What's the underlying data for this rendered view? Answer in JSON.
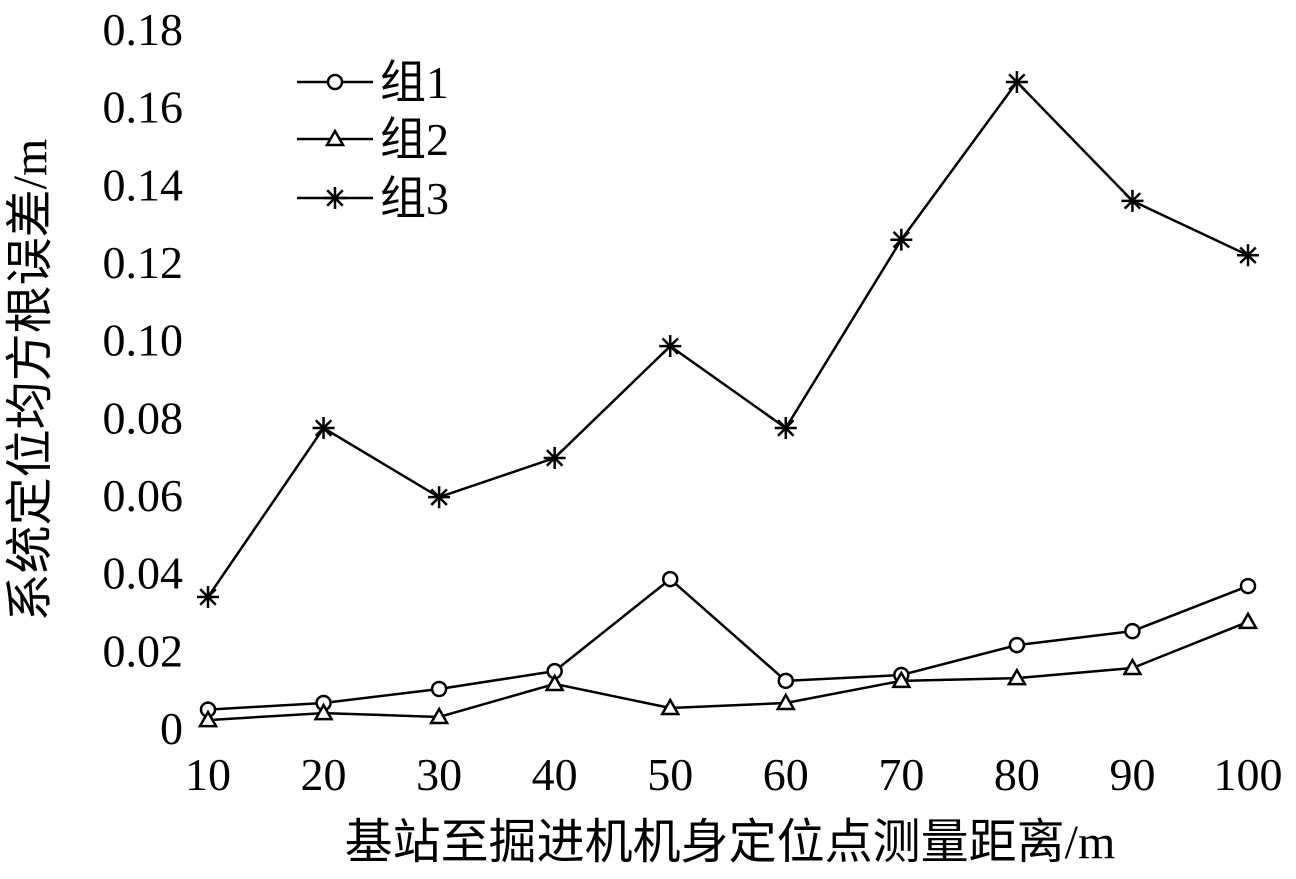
{
  "chart_data": {
    "type": "line",
    "xlabel": "基站至掘进机机身定位点测量距离/m",
    "ylabel": "系统定位均方根误差/m",
    "x": [
      10,
      20,
      30,
      40,
      50,
      60,
      70,
      80,
      90,
      100
    ],
    "xticks": [
      "10",
      "20",
      "30",
      "40",
      "50",
      "60",
      "70",
      "80",
      "90",
      "100"
    ],
    "yticks": [
      "0",
      "0.02",
      "0.04",
      "0.06",
      "0.08",
      "0.10",
      "0.12",
      "0.14",
      "0.16",
      "0.18"
    ],
    "xlim": [
      10,
      100
    ],
    "ylim": [
      0,
      0.18
    ],
    "grid": false,
    "legend_position": "top-left",
    "series": [
      {
        "name": "组1",
        "marker": "circle",
        "values": [
          0.005,
          0.0067,
          0.0103,
          0.0149,
          0.0386,
          0.0124,
          0.0139,
          0.0216,
          0.0252,
          0.0368
        ]
      },
      {
        "name": "组2",
        "marker": "triangle",
        "values": [
          0.0023,
          0.0041,
          0.0031,
          0.0116,
          0.0054,
          0.0067,
          0.0124,
          0.0131,
          0.0157,
          0.0276
        ]
      },
      {
        "name": "组3",
        "marker": "asterisk",
        "values": [
          0.034,
          0.0775,
          0.0597,
          0.0698,
          0.0986,
          0.0775,
          0.126,
          0.1666,
          0.136,
          0.122
        ]
      }
    ],
    "color": "#000000"
  }
}
